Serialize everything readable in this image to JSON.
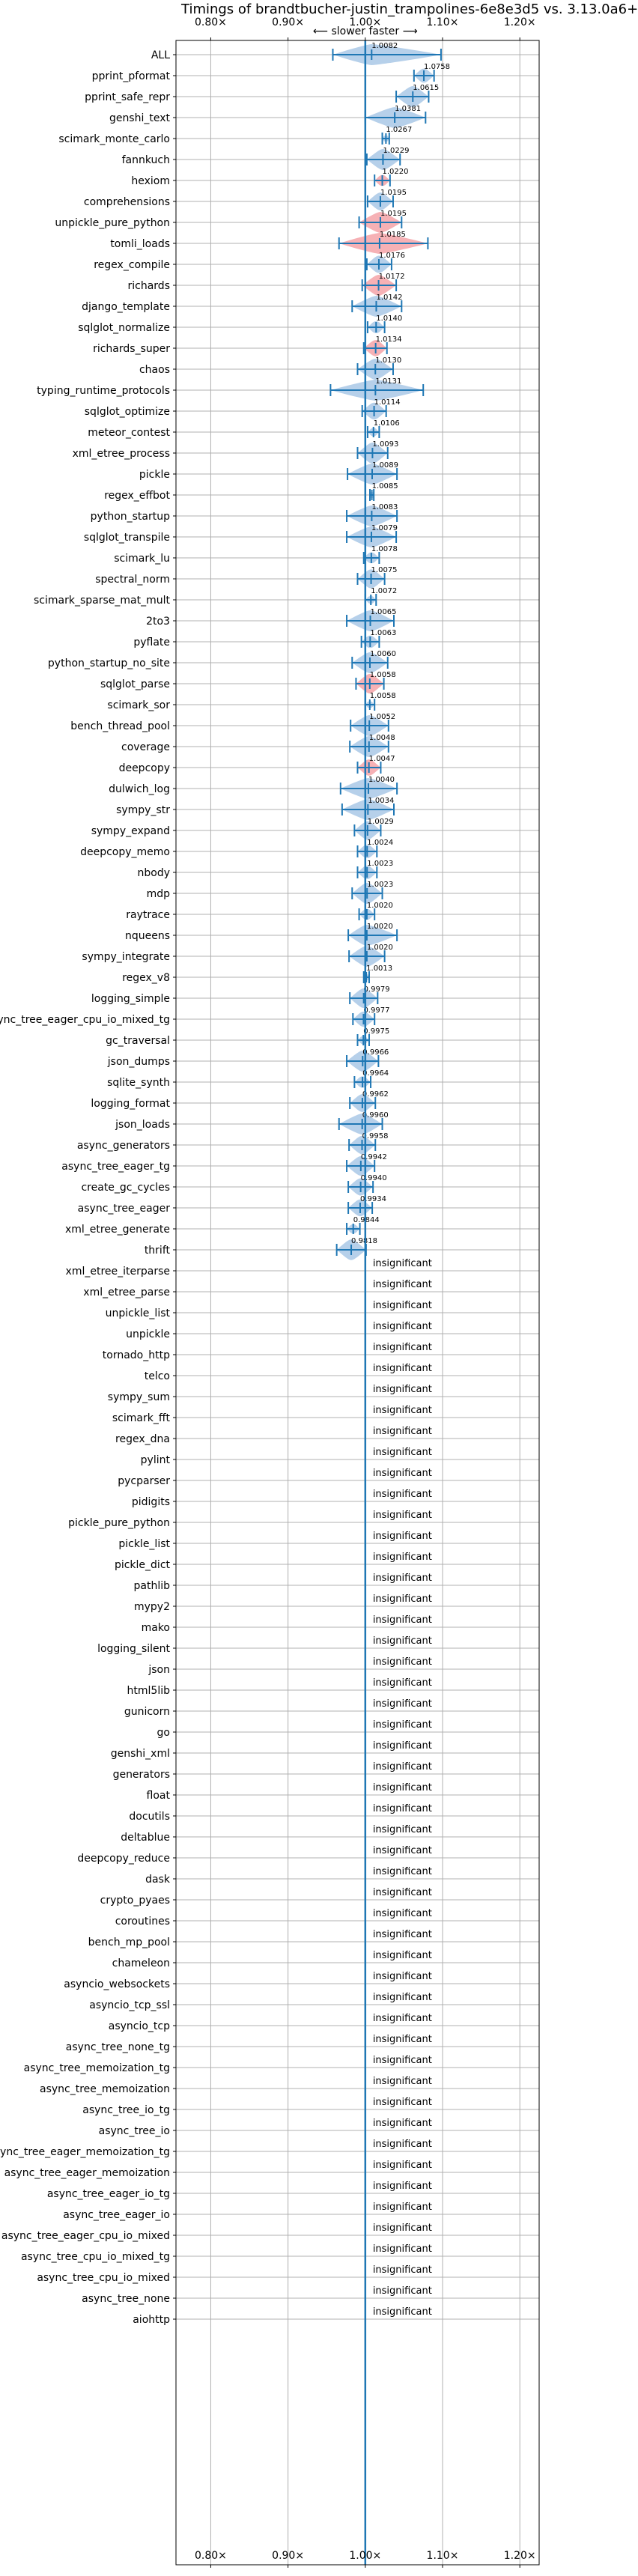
{
  "chart_data": {
    "type": "violin",
    "title": "Timings of brandtbucher-justin_trampolines-6e8e3d5 vs. 3.13.0a6+",
    "direction_label": "⟵ slower   faster ⟶",
    "xlim": [
      0.755,
      1.225
    ],
    "x_ticks": [
      0.8,
      0.9,
      1.0,
      1.1,
      1.2
    ],
    "x_tick_labels": [
      "0.80×",
      "0.90×",
      "1.00×",
      "1.10×",
      "1.20×"
    ],
    "grid": true,
    "colors": {
      "faster": "#1f77b4",
      "faster_fill": "#a9c8e6",
      "slower_fill": "#f4a3a8",
      "grid": "#b0b0b0"
    },
    "insignificant_label": "insignificant",
    "benchmarks": [
      {
        "name": "ALL",
        "label": "1.0082",
        "mean": 1.0082,
        "lo": 0.958,
        "hi": 1.098,
        "significant": true
      },
      {
        "name": "pprint_pformat",
        "label": "1.0758",
        "mean": 1.0758,
        "lo": 1.063,
        "hi": 1.089,
        "significant": true
      },
      {
        "name": "pprint_safe_repr",
        "label": "1.0615",
        "mean": 1.0615,
        "lo": 1.04,
        "hi": 1.082,
        "significant": true
      },
      {
        "name": "genshi_text",
        "label": "1.0381",
        "mean": 1.0381,
        "lo": 1.0,
        "hi": 1.078,
        "significant": true
      },
      {
        "name": "scimark_monte_carlo",
        "label": "1.0267",
        "mean": 1.0267,
        "lo": 1.022,
        "hi": 1.031,
        "significant": true
      },
      {
        "name": "fannkuch",
        "label": "1.0229",
        "mean": 1.0229,
        "lo": 1.002,
        "hi": 1.045,
        "significant": true
      },
      {
        "name": "hexiom",
        "label": "1.0220",
        "mean": 1.022,
        "lo": 1.012,
        "hi": 1.032,
        "significant": true
      },
      {
        "name": "comprehensions",
        "label": "1.0195",
        "mean": 1.0195,
        "lo": 1.003,
        "hi": 1.036,
        "significant": true
      },
      {
        "name": "unpickle_pure_python",
        "label": "1.0195",
        "mean": 1.0195,
        "lo": 0.992,
        "hi": 1.047,
        "significant": true
      },
      {
        "name": "tomli_loads",
        "label": "1.0185",
        "mean": 1.0185,
        "lo": 0.966,
        "hi": 1.081,
        "significant": true
      },
      {
        "name": "regex_compile",
        "label": "1.0176",
        "mean": 1.0176,
        "lo": 1.002,
        "hi": 1.034,
        "significant": true
      },
      {
        "name": "richards",
        "label": "1.0172",
        "mean": 1.0172,
        "lo": 0.996,
        "hi": 1.04,
        "significant": true
      },
      {
        "name": "django_template",
        "label": "1.0142",
        "mean": 1.0142,
        "lo": 0.983,
        "hi": 1.047,
        "significant": true
      },
      {
        "name": "sqlglot_normalize",
        "label": "1.0140",
        "mean": 1.014,
        "lo": 1.003,
        "hi": 1.025,
        "significant": true
      },
      {
        "name": "richards_super",
        "label": "1.0134",
        "mean": 1.0134,
        "lo": 0.998,
        "hi": 1.028,
        "significant": true
      },
      {
        "name": "chaos",
        "label": "1.0130",
        "mean": 1.013,
        "lo": 0.99,
        "hi": 1.036,
        "significant": true
      },
      {
        "name": "typing_runtime_protocols",
        "label": "1.0131",
        "mean": 1.0131,
        "lo": 0.955,
        "hi": 1.075,
        "significant": true
      },
      {
        "name": "sqlglot_optimize",
        "label": "1.0114",
        "mean": 1.0114,
        "lo": 0.996,
        "hi": 1.027,
        "significant": true
      },
      {
        "name": "meteor_contest",
        "label": "1.0106",
        "mean": 1.0106,
        "lo": 1.003,
        "hi": 1.018,
        "significant": true
      },
      {
        "name": "xml_etree_process",
        "label": "1.0093",
        "mean": 1.0093,
        "lo": 0.99,
        "hi": 1.029,
        "significant": true
      },
      {
        "name": "pickle",
        "label": "1.0089",
        "mean": 1.0089,
        "lo": 0.977,
        "hi": 1.041,
        "significant": true
      },
      {
        "name": "regex_effbot",
        "label": "1.0085",
        "mean": 1.0085,
        "lo": 1.006,
        "hi": 1.011,
        "significant": true
      },
      {
        "name": "python_startup",
        "label": "1.0083",
        "mean": 1.0083,
        "lo": 0.976,
        "hi": 1.041,
        "significant": true
      },
      {
        "name": "sqlglot_transpile",
        "label": "1.0079",
        "mean": 1.0079,
        "lo": 0.976,
        "hi": 1.04,
        "significant": true
      },
      {
        "name": "scimark_lu",
        "label": "1.0078",
        "mean": 1.0078,
        "lo": 0.998,
        "hi": 1.018,
        "significant": true
      },
      {
        "name": "spectral_norm",
        "label": "1.0075",
        "mean": 1.0075,
        "lo": 0.99,
        "hi": 1.025,
        "significant": true
      },
      {
        "name": "scimark_sparse_mat_mult",
        "label": "1.0072",
        "mean": 1.0072,
        "lo": 1.0,
        "hi": 1.014,
        "significant": true
      },
      {
        "name": "2to3",
        "label": "1.0065",
        "mean": 1.0065,
        "lo": 0.976,
        "hi": 1.037,
        "significant": true
      },
      {
        "name": "pyflate",
        "label": "1.0063",
        "mean": 1.0063,
        "lo": 0.995,
        "hi": 1.018,
        "significant": true
      },
      {
        "name": "python_startup_no_site",
        "label": "1.0060",
        "mean": 1.006,
        "lo": 0.983,
        "hi": 1.029,
        "significant": true
      },
      {
        "name": "sqlglot_parse",
        "label": "1.0058",
        "mean": 1.0058,
        "lo": 0.988,
        "hi": 1.024,
        "significant": true
      },
      {
        "name": "scimark_sor",
        "label": "1.0058",
        "mean": 1.0058,
        "lo": 1.0,
        "hi": 1.012,
        "significant": true
      },
      {
        "name": "bench_thread_pool",
        "label": "1.0052",
        "mean": 1.0052,
        "lo": 0.981,
        "hi": 1.03,
        "significant": true
      },
      {
        "name": "coverage",
        "label": "1.0048",
        "mean": 1.0048,
        "lo": 0.98,
        "hi": 1.03,
        "significant": true
      },
      {
        "name": "deepcopy",
        "label": "1.0047",
        "mean": 1.0047,
        "lo": 0.99,
        "hi": 1.02,
        "significant": true
      },
      {
        "name": "dulwich_log",
        "label": "1.0040",
        "mean": 1.004,
        "lo": 0.968,
        "hi": 1.041,
        "significant": true
      },
      {
        "name": "sympy_str",
        "label": "1.0034",
        "mean": 1.0034,
        "lo": 0.97,
        "hi": 1.037,
        "significant": true
      },
      {
        "name": "sympy_expand",
        "label": "1.0029",
        "mean": 1.0029,
        "lo": 0.986,
        "hi": 1.02,
        "significant": true
      },
      {
        "name": "deepcopy_memo",
        "label": "1.0024",
        "mean": 1.0024,
        "lo": 0.99,
        "hi": 1.015,
        "significant": true
      },
      {
        "name": "nbody",
        "label": "1.0023",
        "mean": 1.0023,
        "lo": 0.99,
        "hi": 1.015,
        "significant": true
      },
      {
        "name": "mdp",
        "label": "1.0023",
        "mean": 1.0023,
        "lo": 0.983,
        "hi": 1.022,
        "significant": true
      },
      {
        "name": "raytrace",
        "label": "1.0020",
        "mean": 1.002,
        "lo": 0.992,
        "hi": 1.012,
        "significant": true
      },
      {
        "name": "nqueens",
        "label": "1.0020",
        "mean": 1.002,
        "lo": 0.978,
        "hi": 1.041,
        "significant": true
      },
      {
        "name": "sympy_integrate",
        "label": "1.0020",
        "mean": 1.002,
        "lo": 0.979,
        "hi": 1.025,
        "significant": true
      },
      {
        "name": "regex_v8",
        "label": "1.0013",
        "mean": 1.0013,
        "lo": 0.998,
        "hi": 1.005,
        "significant": true
      },
      {
        "name": "logging_simple",
        "label": "0.9979",
        "mean": 0.9979,
        "lo": 0.98,
        "hi": 1.016,
        "significant": true
      },
      {
        "name": "async_tree_eager_cpu_io_mixed_tg",
        "label": "0.9977",
        "mean": 0.9977,
        "lo": 0.984,
        "hi": 1.012,
        "significant": true
      },
      {
        "name": "gc_traversal",
        "label": "0.9975",
        "mean": 0.9975,
        "lo": 0.99,
        "hi": 1.005,
        "significant": true
      },
      {
        "name": "json_dumps",
        "label": "0.9966",
        "mean": 0.9966,
        "lo": 0.976,
        "hi": 1.017,
        "significant": true
      },
      {
        "name": "sqlite_synth",
        "label": "0.9964",
        "mean": 0.9964,
        "lo": 0.986,
        "hi": 1.007,
        "significant": true
      },
      {
        "name": "logging_format",
        "label": "0.9962",
        "mean": 0.9962,
        "lo": 0.98,
        "hi": 1.013,
        "significant": true
      },
      {
        "name": "json_loads",
        "label": "0.9960",
        "mean": 0.996,
        "lo": 0.966,
        "hi": 1.022,
        "significant": true
      },
      {
        "name": "async_generators",
        "label": "0.9958",
        "mean": 0.9958,
        "lo": 0.979,
        "hi": 1.013,
        "significant": true
      },
      {
        "name": "async_tree_eager_tg",
        "label": "0.9942",
        "mean": 0.9942,
        "lo": 0.976,
        "hi": 1.012,
        "significant": true
      },
      {
        "name": "create_gc_cycles",
        "label": "0.9940",
        "mean": 0.994,
        "lo": 0.978,
        "hi": 1.01,
        "significant": true
      },
      {
        "name": "async_tree_eager",
        "label": "0.9934",
        "mean": 0.9934,
        "lo": 0.978,
        "hi": 1.009,
        "significant": true
      },
      {
        "name": "xml_etree_generate",
        "label": "0.9844",
        "mean": 0.9844,
        "lo": 0.976,
        "hi": 0.993,
        "significant": true
      },
      {
        "name": "thrift",
        "label": "0.9818",
        "mean": 0.9818,
        "lo": 0.963,
        "hi": 1.001,
        "significant": true
      },
      {
        "name": "xml_etree_iterparse",
        "significant": false
      },
      {
        "name": "xml_etree_parse",
        "significant": false
      },
      {
        "name": "unpickle_list",
        "significant": false
      },
      {
        "name": "unpickle",
        "significant": false
      },
      {
        "name": "tornado_http",
        "significant": false
      },
      {
        "name": "telco",
        "significant": false
      },
      {
        "name": "sympy_sum",
        "significant": false
      },
      {
        "name": "scimark_fft",
        "significant": false
      },
      {
        "name": "regex_dna",
        "significant": false
      },
      {
        "name": "pylint",
        "significant": false
      },
      {
        "name": "pycparser",
        "significant": false
      },
      {
        "name": "pidigits",
        "significant": false
      },
      {
        "name": "pickle_pure_python",
        "significant": false
      },
      {
        "name": "pickle_list",
        "significant": false
      },
      {
        "name": "pickle_dict",
        "significant": false
      },
      {
        "name": "pathlib",
        "significant": false
      },
      {
        "name": "mypy2",
        "significant": false
      },
      {
        "name": "mako",
        "significant": false
      },
      {
        "name": "logging_silent",
        "significant": false
      },
      {
        "name": "json",
        "significant": false
      },
      {
        "name": "html5lib",
        "significant": false
      },
      {
        "name": "gunicorn",
        "significant": false
      },
      {
        "name": "go",
        "significant": false
      },
      {
        "name": "genshi_xml",
        "significant": false
      },
      {
        "name": "generators",
        "significant": false
      },
      {
        "name": "float",
        "significant": false
      },
      {
        "name": "docutils",
        "significant": false
      },
      {
        "name": "deltablue",
        "significant": false
      },
      {
        "name": "deepcopy_reduce",
        "significant": false
      },
      {
        "name": "dask",
        "significant": false
      },
      {
        "name": "crypto_pyaes",
        "significant": false
      },
      {
        "name": "coroutines",
        "significant": false
      },
      {
        "name": "bench_mp_pool",
        "significant": false
      },
      {
        "name": "chameleon",
        "significant": false
      },
      {
        "name": "asyncio_websockets",
        "significant": false
      },
      {
        "name": "asyncio_tcp_ssl",
        "significant": false
      },
      {
        "name": "asyncio_tcp",
        "significant": false
      },
      {
        "name": "async_tree_none_tg",
        "significant": false
      },
      {
        "name": "async_tree_memoization_tg",
        "significant": false
      },
      {
        "name": "async_tree_memoization",
        "significant": false
      },
      {
        "name": "async_tree_io_tg",
        "significant": false
      },
      {
        "name": "async_tree_io",
        "significant": false
      },
      {
        "name": "async_tree_eager_memoization_tg",
        "significant": false
      },
      {
        "name": "async_tree_eager_memoization",
        "significant": false
      },
      {
        "name": "async_tree_eager_io_tg",
        "significant": false
      },
      {
        "name": "async_tree_eager_io",
        "significant": false
      },
      {
        "name": "async_tree_eager_cpu_io_mixed",
        "significant": false
      },
      {
        "name": "async_tree_cpu_io_mixed_tg",
        "significant": false
      },
      {
        "name": "async_tree_cpu_io_mixed",
        "significant": false
      },
      {
        "name": "async_tree_none",
        "significant": false
      },
      {
        "name": "aiohttp",
        "significant": false
      }
    ]
  }
}
